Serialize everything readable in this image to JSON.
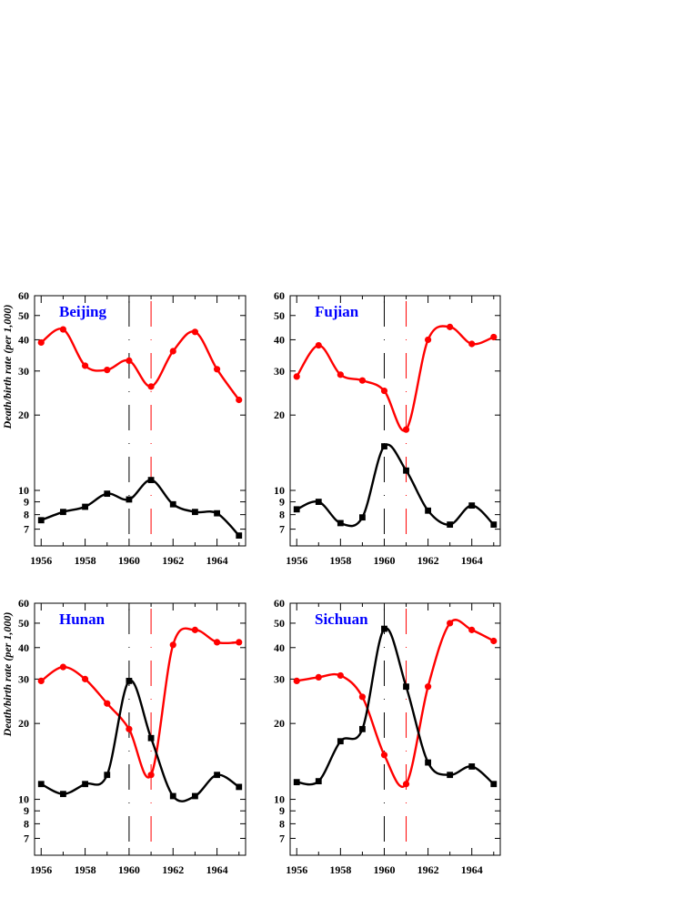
{
  "figure": {
    "ylabel": "Death/birth rate (per 1,000)"
  },
  "colors": {
    "birth": "#ff0000",
    "death": "#000000",
    "title": "#0000ff",
    "axis": "#000000",
    "line_1960": "#000000",
    "line_1961": "#ff0000"
  },
  "chart_data": [
    {
      "type": "line",
      "title": "Beijing",
      "xlabel": "",
      "ylabel": "Death/birth rate (per 1,000)",
      "x": [
        1956,
        1957,
        1958,
        1959,
        1960,
        1961,
        1962,
        1963,
        1964,
        1965
      ],
      "xlim": [
        1955.7,
        1965.3
      ],
      "ylim": [
        6,
        60
      ],
      "yscale": "log",
      "x_ticks": [
        1956,
        1958,
        1960,
        1962,
        1964
      ],
      "y_ticks": [
        7,
        8,
        9,
        10,
        20,
        30,
        40,
        50,
        60
      ],
      "vlines": [
        1960,
        1961
      ],
      "series": [
        {
          "marker": "circle",
          "color": "red",
          "values": [
            39,
            44,
            31.5,
            30.3,
            33,
            26,
            36,
            43,
            30.5,
            23
          ]
        },
        {
          "marker": "square",
          "color": "black",
          "values": [
            7.6,
            8.2,
            8.6,
            9.7,
            9.2,
            11.0,
            8.8,
            8.2,
            8.1,
            6.6
          ]
        }
      ]
    },
    {
      "type": "line",
      "title": "Fujian",
      "xlabel": "",
      "ylabel": "",
      "x": [
        1956,
        1957,
        1958,
        1959,
        1960,
        1961,
        1962,
        1963,
        1964,
        1965
      ],
      "xlim": [
        1955.7,
        1965.3
      ],
      "ylim": [
        6,
        60
      ],
      "yscale": "log",
      "x_ticks": [
        1956,
        1958,
        1960,
        1962,
        1964
      ],
      "y_ticks": [
        7,
        8,
        9,
        10,
        20,
        30,
        40,
        50,
        60
      ],
      "vlines": [
        1960,
        1961
      ],
      "series": [
        {
          "marker": "circle",
          "color": "red",
          "values": [
            28.5,
            38,
            29,
            27.5,
            25,
            17.5,
            40,
            45,
            38.5,
            41
          ]
        },
        {
          "marker": "square",
          "color": "black",
          "values": [
            8.4,
            9.0,
            7.4,
            7.8,
            15.0,
            12.0,
            8.3,
            7.3,
            8.7,
            7.3
          ]
        }
      ]
    },
    {
      "type": "line",
      "title": "Hunan",
      "xlabel": "",
      "ylabel": "Death/birth rate (per 1,000)",
      "x": [
        1956,
        1957,
        1958,
        1959,
        1960,
        1961,
        1962,
        1963,
        1964,
        1965
      ],
      "xlim": [
        1955.7,
        1965.3
      ],
      "ylim": [
        6,
        60
      ],
      "yscale": "log",
      "x_ticks": [
        1956,
        1958,
        1960,
        1962,
        1964
      ],
      "y_ticks": [
        7,
        8,
        9,
        10,
        20,
        30,
        40,
        50,
        60
      ],
      "vlines": [
        1960,
        1961
      ],
      "series": [
        {
          "marker": "circle",
          "color": "red",
          "values": [
            29.5,
            33.5,
            30,
            24,
            19,
            12.5,
            41,
            47,
            42,
            42
          ]
        },
        {
          "marker": "square",
          "color": "black",
          "values": [
            11.5,
            10.5,
            11.5,
            12.5,
            29.5,
            17.5,
            10.3,
            10.3,
            12.5,
            11.2
          ]
        }
      ]
    },
    {
      "type": "line",
      "title": "Sichuan",
      "xlabel": "",
      "ylabel": "",
      "x": [
        1956,
        1957,
        1958,
        1959,
        1960,
        1961,
        1962,
        1963,
        1964,
        1965
      ],
      "xlim": [
        1955.7,
        1965.3
      ],
      "ylim": [
        6,
        60
      ],
      "yscale": "log",
      "x_ticks": [
        1956,
        1958,
        1960,
        1962,
        1964
      ],
      "y_ticks": [
        7,
        8,
        9,
        10,
        20,
        30,
        40,
        50,
        60
      ],
      "vlines": [
        1960,
        1961
      ],
      "series": [
        {
          "marker": "circle",
          "color": "red",
          "values": [
            29.5,
            30.5,
            31,
            25.5,
            15,
            11.5,
            28,
            50,
            47,
            42.5
          ]
        },
        {
          "marker": "square",
          "color": "black",
          "values": [
            11.7,
            11.8,
            17,
            19,
            47.5,
            28,
            14,
            12.5,
            13.5,
            11.5
          ]
        }
      ]
    }
  ]
}
